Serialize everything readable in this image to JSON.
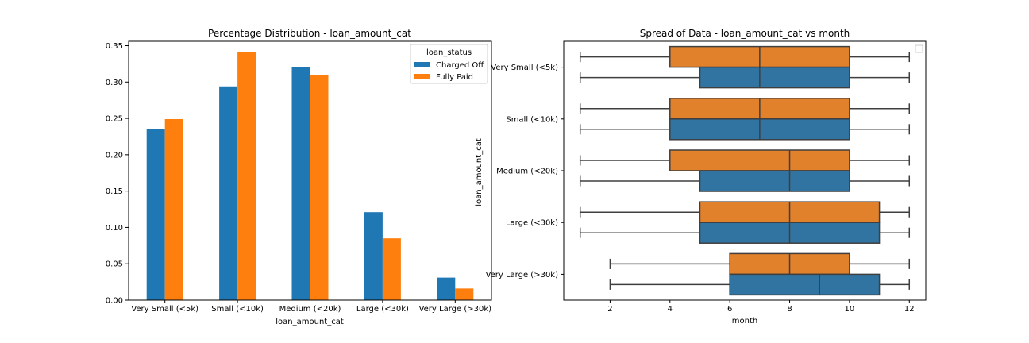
{
  "chart_data": [
    {
      "type": "bar",
      "title": "Percentage Distribution - loan_amount_cat",
      "xlabel": "loan_amount_cat",
      "ylabel": "",
      "categories": [
        "Very Small (<5k)",
        "Small (<10k)",
        "Medium (<20k)",
        "Large (<30k)",
        "Very Large (>30k)"
      ],
      "series": [
        {
          "name": "Charged Off",
          "values": [
            0.235,
            0.294,
            0.321,
            0.121,
            0.031
          ],
          "color": "#1f77b4"
        },
        {
          "name": "Fully Paid",
          "values": [
            0.249,
            0.341,
            0.31,
            0.085,
            0.016
          ],
          "color": "#ff7f0e"
        }
      ],
      "ylim": [
        0,
        0.356
      ],
      "yticks": [
        "0.00",
        "0.05",
        "0.10",
        "0.15",
        "0.20",
        "0.25",
        "0.30",
        "0.35"
      ],
      "legend": {
        "title": "loan_status",
        "placement": "top-right"
      }
    },
    {
      "type": "box",
      "title": "Spread of Data - loan_amount_cat vs month",
      "xlabel": "month",
      "ylabel": "loan_amount_cat",
      "xlim": [
        0.45,
        12.55
      ],
      "xticks": [
        "2",
        "4",
        "6",
        "8",
        "10",
        "12"
      ],
      "legend": {
        "placement": "top-right",
        "entries": []
      },
      "categories": [
        "Very Small (<5k)",
        "Small (<10k)",
        "Medium (<20k)",
        "Large (<30k)",
        "Very Large (>30k)"
      ],
      "boxes": [
        {
          "category": "Very Small (<5k)",
          "group": "Fully Paid",
          "color": "#e1812c",
          "whisker_low": 1,
          "q1": 4,
          "median": 7,
          "q3": 10,
          "whisker_high": 12
        },
        {
          "category": "Very Small (<5k)",
          "group": "Charged Off",
          "color": "#3274a1",
          "whisker_low": 1,
          "q1": 5,
          "median": 7,
          "q3": 10,
          "whisker_high": 12
        },
        {
          "category": "Small (<10k)",
          "group": "Fully Paid",
          "color": "#e1812c",
          "whisker_low": 1,
          "q1": 4,
          "median": 7,
          "q3": 10,
          "whisker_high": 12
        },
        {
          "category": "Small (<10k)",
          "group": "Charged Off",
          "color": "#3274a1",
          "whisker_low": 1,
          "q1": 4,
          "median": 7,
          "q3": 10,
          "whisker_high": 12
        },
        {
          "category": "Medium (<20k)",
          "group": "Fully Paid",
          "color": "#e1812c",
          "whisker_low": 1,
          "q1": 4,
          "median": 8,
          "q3": 10,
          "whisker_high": 12
        },
        {
          "category": "Medium (<20k)",
          "group": "Charged Off",
          "color": "#3274a1",
          "whisker_low": 1,
          "q1": 5,
          "median": 8,
          "q3": 10,
          "whisker_high": 12
        },
        {
          "category": "Large (<30k)",
          "group": "Fully Paid",
          "color": "#e1812c",
          "whisker_low": 1,
          "q1": 5,
          "median": 8,
          "q3": 11,
          "whisker_high": 12
        },
        {
          "category": "Large (<30k)",
          "group": "Charged Off",
          "color": "#3274a1",
          "whisker_low": 1,
          "q1": 5,
          "median": 8,
          "q3": 11,
          "whisker_high": 12
        },
        {
          "category": "Very Large (>30k)",
          "group": "Fully Paid",
          "color": "#e1812c",
          "whisker_low": 2,
          "q1": 6,
          "median": 8,
          "q3": 10,
          "whisker_high": 12
        },
        {
          "category": "Very Large (>30k)",
          "group": "Charged Off",
          "color": "#3274a1",
          "whisker_low": 2,
          "q1": 6,
          "median": 9,
          "q3": 11,
          "whisker_high": 12
        }
      ]
    }
  ]
}
